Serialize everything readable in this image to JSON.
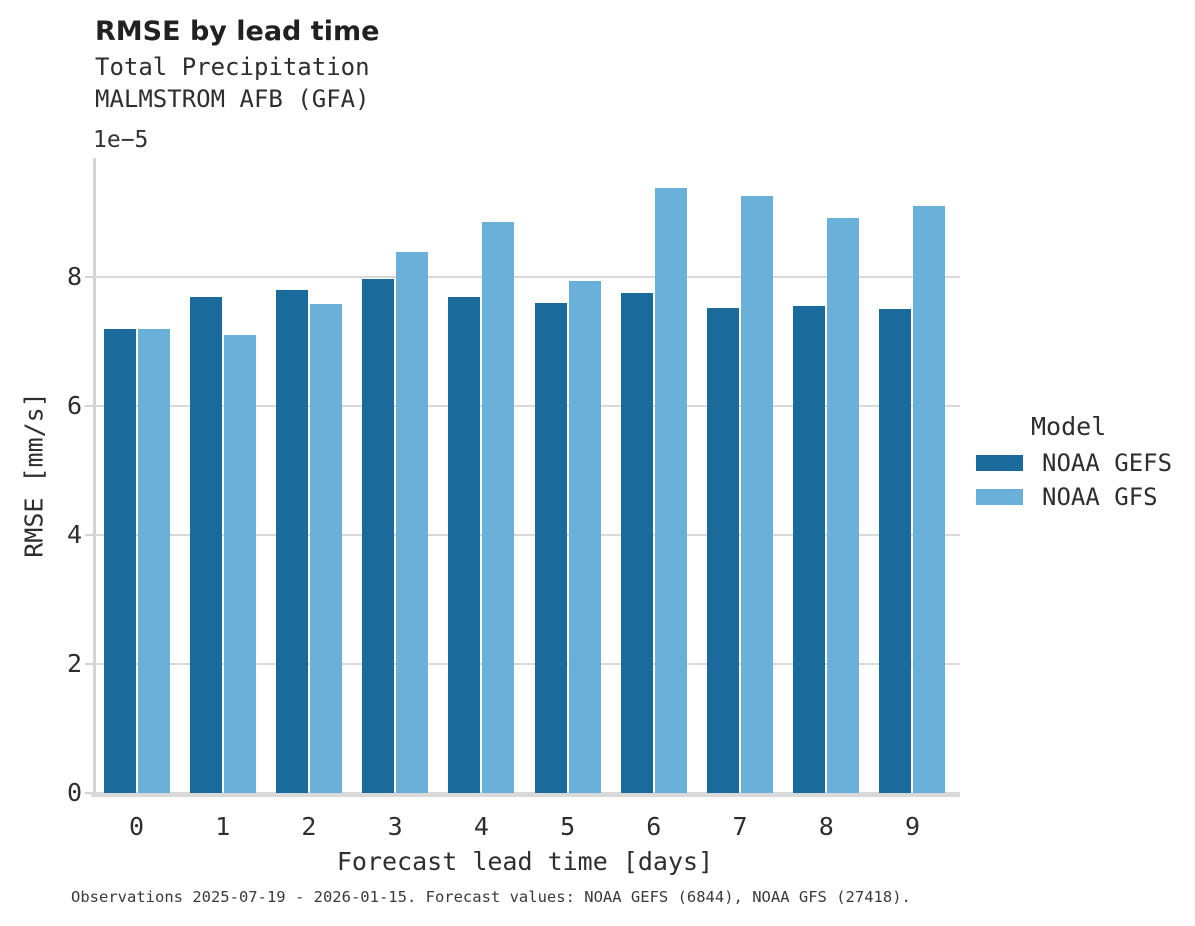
{
  "header": {
    "title": "RMSE by lead time",
    "subtitle_line1": "Total Precipitation",
    "subtitle_line2": "MALMSTROM AFB (GFA)"
  },
  "axes": {
    "offset_label": "1e−5",
    "ylabel": "RMSE [mm/s]",
    "xlabel": "Forecast lead time [days]"
  },
  "legend": {
    "title": "Model",
    "items": [
      {
        "label": "NOAA GEFS",
        "color": "#1b6a9c"
      },
      {
        "label": "NOAA GFS",
        "color": "#6bb0d8"
      }
    ]
  },
  "footer": {
    "text": "Observations 2025-07-19 - 2026-01-15. Forecast values: NOAA GEFS (6844), NOAA GFS (27418)."
  },
  "chart_data": {
    "type": "bar",
    "title": "RMSE by lead time",
    "subtitle": [
      "Total Precipitation",
      "MALMSTROM AFB (GFA)"
    ],
    "xlabel": "Forecast lead time [days]",
    "ylabel": "RMSE [mm/s]",
    "value_multiplier": "1e-5",
    "categories": [
      "0",
      "1",
      "2",
      "3",
      "4",
      "5",
      "6",
      "7",
      "8",
      "9"
    ],
    "series": [
      {
        "name": "NOAA GEFS",
        "color": "#1b6a9c",
        "values": [
          7.2,
          7.69,
          7.81,
          7.98,
          7.69,
          7.61,
          7.76,
          7.52,
          7.55,
          7.51
        ]
      },
      {
        "name": "NOAA GFS",
        "color": "#6bb0d8",
        "values": [
          7.2,
          7.11,
          7.59,
          8.4,
          8.86,
          7.95,
          9.39,
          9.26,
          8.93,
          9.11
        ]
      }
    ],
    "yticks": [
      0,
      2,
      4,
      6,
      8
    ],
    "ylim": [
      0,
      9.85
    ],
    "grid": true,
    "legend_title": "Model",
    "legend_position": "right",
    "annotation": "Observations 2025-07-19 - 2026-01-15. Forecast values: NOAA GEFS (6844), NOAA GFS (27418)."
  }
}
